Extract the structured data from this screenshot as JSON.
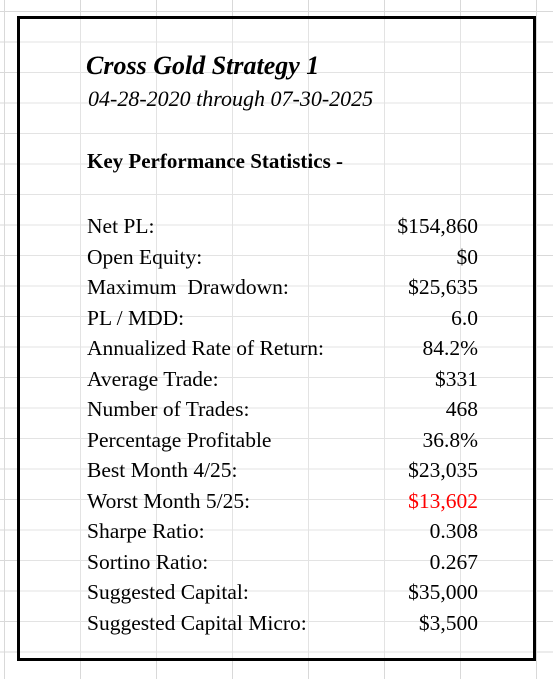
{
  "report": {
    "title": "Cross Gold Strategy 1",
    "date_range": "04-28-2020 through 07-30-2025",
    "section_heading": "Key Performance Statistics -"
  },
  "colors": {
    "negative_value": "#ff0000",
    "border": "#000000",
    "gridline": "#d9d9d9"
  },
  "stats": [
    {
      "label": "Net PL:",
      "value": "$154,860"
    },
    {
      "label": "Open Equity:",
      "value": "$0"
    },
    {
      "label": "Maximum  Drawdown:",
      "value": "$25,635"
    },
    {
      "label": "PL / MDD:",
      "value": "6.0"
    },
    {
      "label": "Annualized Rate of Return:",
      "value": "84.2%"
    },
    {
      "label": "Average Trade:",
      "value": "$331"
    },
    {
      "label": "Number of Trades:",
      "value": "468"
    },
    {
      "label": "Percentage Profitable",
      "value": "36.8%"
    },
    {
      "label": "Best Month 4/25:",
      "value": "$23,035"
    },
    {
      "label": "Worst Month 5/25:",
      "value": "$13,602",
      "negative": true
    },
    {
      "label": "Sharpe Ratio:",
      "value": "0.308"
    },
    {
      "label": "Sortino Ratio:",
      "value": "0.267"
    },
    {
      "label": "Suggested Capital:",
      "value": "$35,000"
    },
    {
      "label": "Suggested Capital Micro:",
      "value": "$3,500"
    }
  ]
}
